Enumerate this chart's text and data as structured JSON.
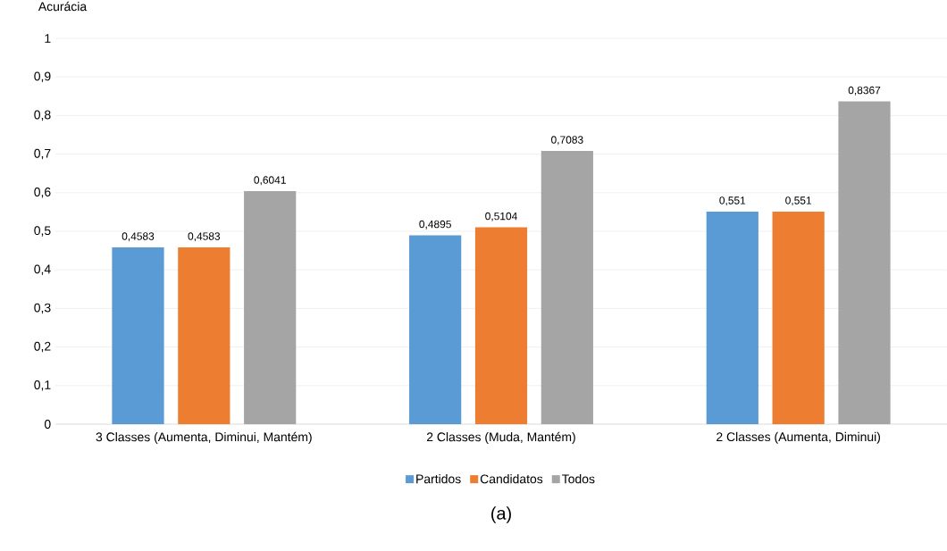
{
  "chart_data": {
    "type": "bar",
    "ylabel": "Acurácia",
    "categories": [
      "3 Classes (Aumenta, Diminui, Mantém)",
      "2 Classes (Muda, Mantém)",
      "2 Classes (Aumenta, Diminui)"
    ],
    "series": [
      {
        "name": "Partidos",
        "color": "#5b9bd5",
        "values": [
          0.4583,
          0.4895,
          0.551
        ],
        "value_labels": [
          "0,4583",
          "0,4895",
          "0,551"
        ]
      },
      {
        "name": "Candidatos",
        "color": "#ed7d31",
        "values": [
          0.4583,
          0.5104,
          0.551
        ],
        "value_labels": [
          "0,4583",
          "0,5104",
          "0,551"
        ]
      },
      {
        "name": "Todos",
        "color": "#a5a5a5",
        "values": [
          0.6041,
          0.7083,
          0.8367
        ],
        "value_labels": [
          "0,6041",
          "0,7083",
          "0,8367"
        ]
      }
    ],
    "ylim": [
      0,
      1
    ],
    "yticks": [
      0,
      {
        "value": 0.1,
        "label": "0,1"
      },
      {
        "value": 0.2,
        "label": "0,2"
      },
      {
        "value": 0.3,
        "label": "0,3"
      },
      {
        "value": 0.4,
        "label": "0,4"
      },
      {
        "value": 0.5,
        "label": "0,5"
      },
      {
        "value": 0.6,
        "label": "0,6"
      },
      {
        "value": 0.7,
        "label": "0,7"
      },
      {
        "value": 0.8,
        "label": "0,8"
      },
      {
        "value": 0.9,
        "label": "0,9"
      },
      1
    ],
    "grid": "y",
    "legend": "bottom",
    "annotations": [
      "(a)"
    ]
  }
}
